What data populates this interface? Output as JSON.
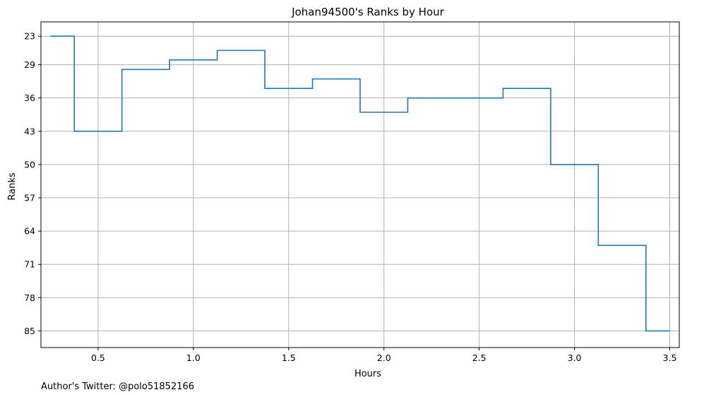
{
  "chart_data": {
    "type": "line",
    "title": "Johan94500's Ranks by Hour",
    "xlabel": "Hours",
    "ylabel": "Ranks",
    "drawstyle": "steps-mid",
    "xlim": [
      0.2,
      3.55
    ],
    "ylim": [
      88.5,
      20.0
    ],
    "y_inverted": true,
    "xticks": [
      0.5,
      1.0,
      1.5,
      2.0,
      2.5,
      3.0,
      3.5
    ],
    "xtick_labels": [
      "0.5",
      "1.0",
      "1.5",
      "2.0",
      "2.5",
      "3.0",
      "3.5"
    ],
    "yticks": [
      23,
      29,
      36,
      43,
      50,
      57,
      64,
      71,
      78,
      85
    ],
    "ytick_labels": [
      "23",
      "29",
      "36",
      "43",
      "50",
      "57",
      "64",
      "71",
      "78",
      "85"
    ],
    "grid": true,
    "series": [
      {
        "color": "#1f77b4",
        "x": [
          0.25,
          0.5,
          0.75,
          1.0,
          1.25,
          1.5,
          1.75,
          2.0,
          2.25,
          2.5,
          2.75,
          3.0,
          3.25,
          3.5
        ],
        "y": [
          23,
          43,
          30,
          28,
          26,
          34,
          32,
          39,
          36,
          36,
          34,
          50,
          67,
          85
        ]
      }
    ]
  },
  "footer": {
    "author": "Author's Twitter: @polo51852166"
  }
}
